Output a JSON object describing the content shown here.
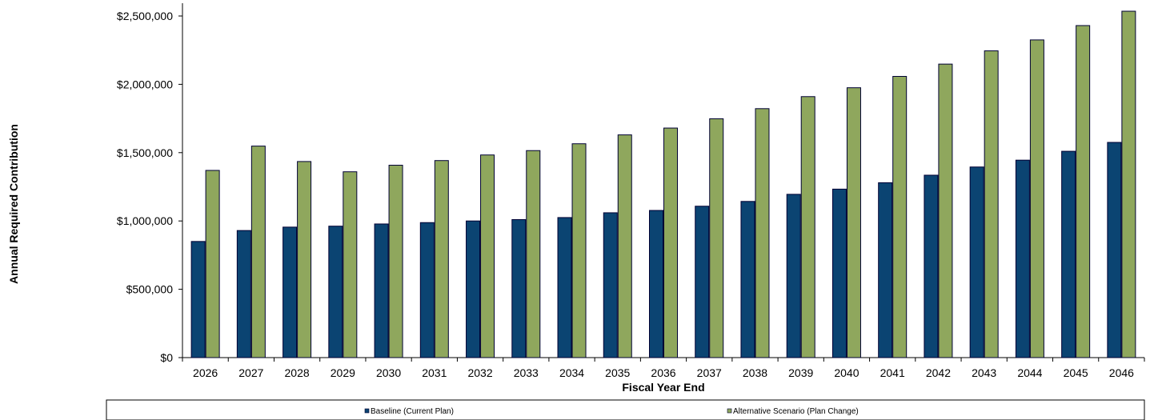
{
  "chart_data": {
    "type": "bar",
    "title": "",
    "xlabel": "Fiscal Year End",
    "ylabel": "Annual Required Contribution",
    "categories": [
      "2026",
      "2027",
      "2028",
      "2029",
      "2030",
      "2031",
      "2032",
      "2033",
      "2034",
      "2035",
      "2036",
      "2037",
      "2038",
      "2039",
      "2040",
      "2041",
      "2042",
      "2043",
      "2044",
      "2045",
      "2046"
    ],
    "series": [
      {
        "name": "Baseline  (Current Plan)",
        "color": "#0b4472",
        "values": [
          850000,
          930000,
          955000,
          962000,
          978000,
          988000,
          1000000,
          1010000,
          1025000,
          1060000,
          1077000,
          1108000,
          1143000,
          1195000,
          1233000,
          1280000,
          1335000,
          1395000,
          1445000,
          1510000,
          1575000
        ]
      },
      {
        "name": "Alternative Scenario (Plan Change)",
        "color": "#8fa75d",
        "values": [
          1370000,
          1548000,
          1435000,
          1360000,
          1408000,
          1442000,
          1483000,
          1515000,
          1565000,
          1630000,
          1680000,
          1748000,
          1822000,
          1910000,
          1975000,
          2058000,
          2148000,
          2245000,
          2325000,
          2430000,
          2535000
        ]
      }
    ],
    "yticks": [
      {
        "value": 0,
        "label": "$0"
      },
      {
        "value": 500000,
        "label": "$500,000"
      },
      {
        "value": 1000000,
        "label": "$1,000,000"
      },
      {
        "value": 1500000,
        "label": "$1,500,000"
      },
      {
        "value": 2000000,
        "label": "$2,000,000"
      },
      {
        "value": 2500000,
        "label": "$2,500,000"
      }
    ],
    "ylim": [
      0,
      2600000
    ],
    "grid": false,
    "legend_position": "bottom"
  }
}
